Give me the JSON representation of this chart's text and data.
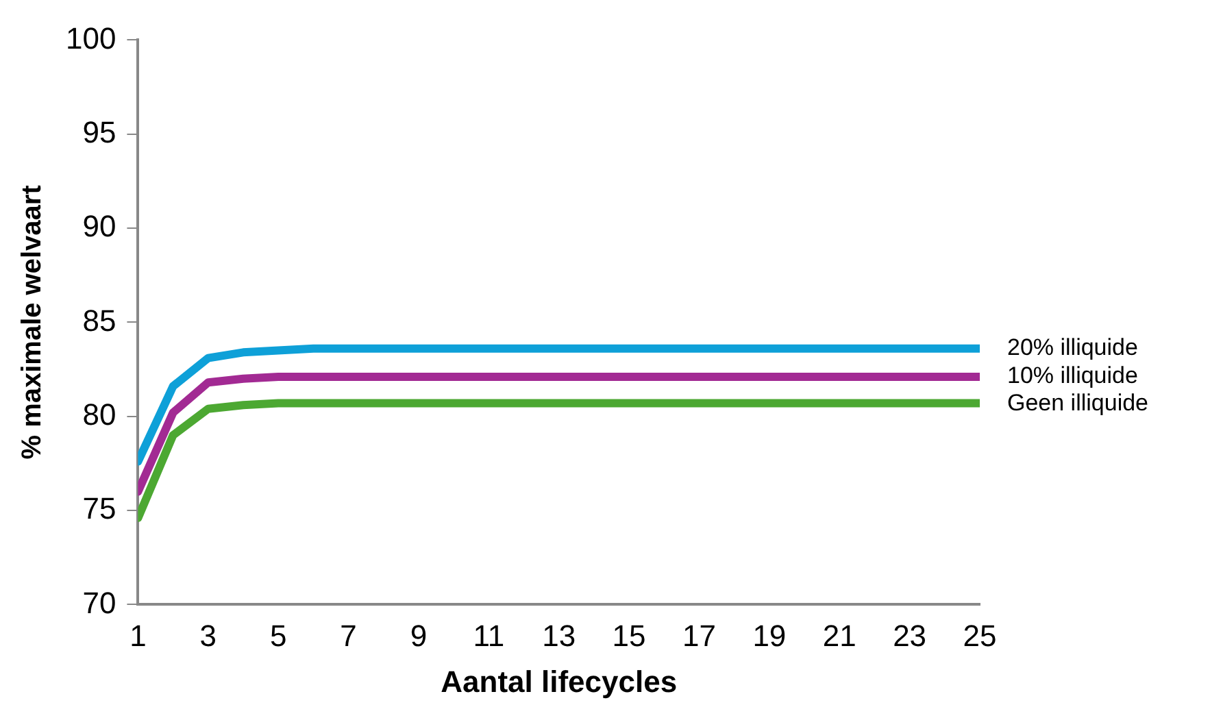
{
  "chart_data": {
    "type": "line",
    "xlabel": "Aantal lifecycles",
    "ylabel": "% maximale welvaart",
    "x": [
      1,
      2,
      3,
      4,
      5,
      6,
      7,
      8,
      9,
      10,
      11,
      12,
      13,
      14,
      15,
      16,
      17,
      18,
      19,
      20,
      21,
      22,
      23,
      24,
      25
    ],
    "xlim": [
      1,
      25
    ],
    "xticks": [
      1,
      3,
      5,
      7,
      9,
      11,
      13,
      15,
      17,
      19,
      21,
      23,
      25
    ],
    "ylim": [
      70,
      100
    ],
    "yticks": [
      70,
      75,
      80,
      85,
      90,
      95,
      100
    ],
    "grid": false,
    "legend": false,
    "marker": "none",
    "line_style": "solid",
    "series": [
      {
        "name": "20% illiquide",
        "color": "#0ea0d8",
        "values": [
          77.6,
          81.6,
          83.1,
          83.4,
          83.5,
          83.6,
          83.6,
          83.6,
          83.6,
          83.6,
          83.6,
          83.6,
          83.6,
          83.6,
          83.6,
          83.6,
          83.6,
          83.6,
          83.6,
          83.6,
          83.6,
          83.6,
          83.6,
          83.6,
          83.6
        ]
      },
      {
        "name": "10% illiquide",
        "color": "#a22a93",
        "values": [
          76.0,
          80.2,
          81.8,
          82.0,
          82.1,
          82.1,
          82.1,
          82.1,
          82.1,
          82.1,
          82.1,
          82.1,
          82.1,
          82.1,
          82.1,
          82.1,
          82.1,
          82.1,
          82.1,
          82.1,
          82.1,
          82.1,
          82.1,
          82.1,
          82.1
        ]
      },
      {
        "name": "Geen illiquide",
        "color": "#4ca832",
        "values": [
          74.6,
          79.0,
          80.4,
          80.6,
          80.7,
          80.7,
          80.7,
          80.7,
          80.7,
          80.7,
          80.7,
          80.7,
          80.7,
          80.7,
          80.7,
          80.7,
          80.7,
          80.7,
          80.7,
          80.7,
          80.7,
          80.7,
          80.7,
          80.7,
          80.7
        ]
      }
    ]
  }
}
